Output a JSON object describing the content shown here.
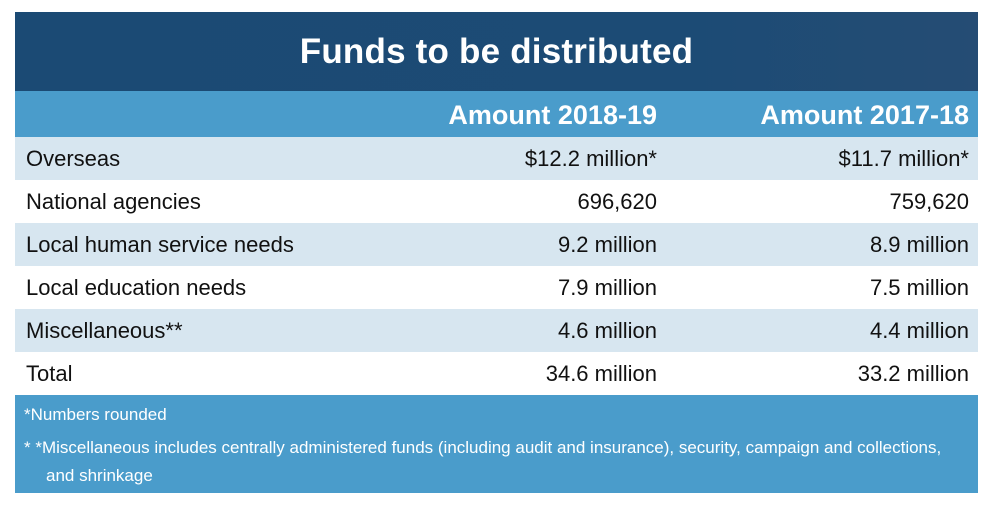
{
  "title": "Funds to be distributed",
  "columns": {
    "amount_2018_19": "Amount 2018-19",
    "amount_2017_18": "Amount 2017-18"
  },
  "rows": [
    {
      "label": "Overseas",
      "amount_2018_19": "$12.2 million*",
      "amount_2017_18": "$11.7 million*"
    },
    {
      "label": "National agencies",
      "amount_2018_19": "696,620",
      "amount_2017_18": "759,620"
    },
    {
      "label": "Local human service needs",
      "amount_2018_19": "9.2 million",
      "amount_2017_18": "8.9 million"
    },
    {
      "label": "Local education needs",
      "amount_2018_19": "7.9 million",
      "amount_2017_18": "7.5 million"
    },
    {
      "label": "Miscellaneous**",
      "amount_2018_19": "4.6 million",
      "amount_2017_18": "4.4 million"
    },
    {
      "label": "Total",
      "amount_2018_19": "34.6 million",
      "amount_2017_18": "33.2 million"
    }
  ],
  "notes": {
    "rounded": "*Numbers rounded",
    "misc": "* *Miscellaneous includes centrally administered funds (including audit and insurance), security, campaign and collections, and shrinkage"
  },
  "colors": {
    "title_bg": "#1c4b75",
    "header_bg": "#4a9ccb",
    "shaded_row": "#d7e6f0",
    "plain_row": "#ffffff",
    "notes_bg": "#4a9ccb"
  }
}
